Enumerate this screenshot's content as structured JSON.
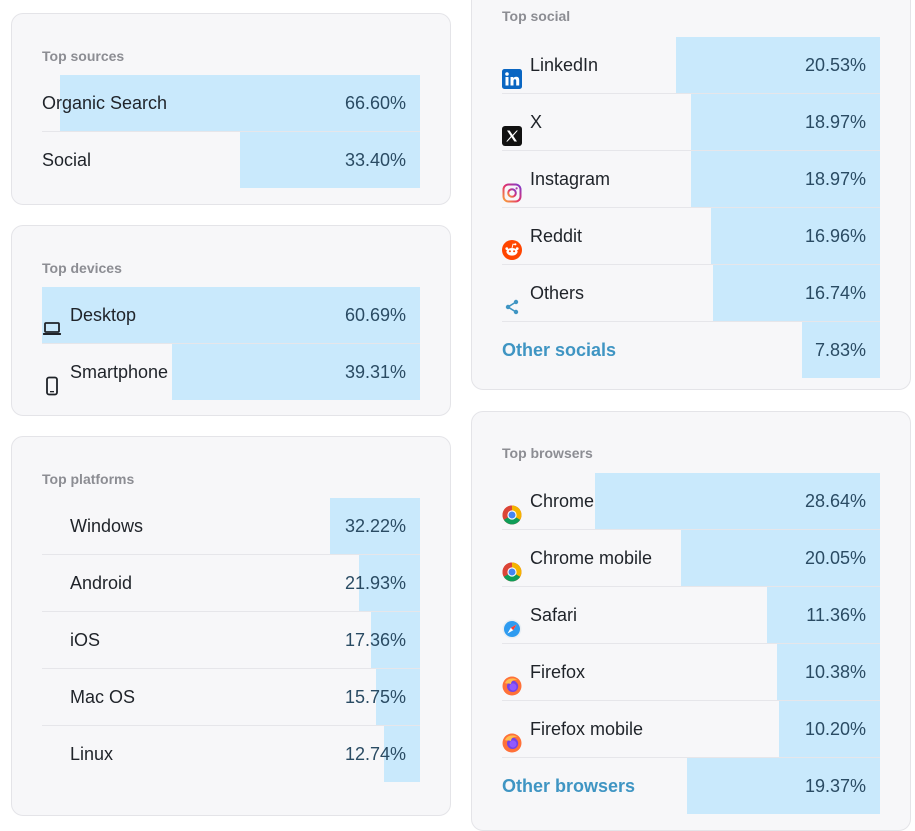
{
  "top_sources": {
    "title": "Top sources",
    "rows": [
      {
        "label": "Organic Search",
        "value": "66.60%",
        "pct": 66.6
      },
      {
        "label": "Social",
        "value": "33.40%",
        "pct": 33.4
      }
    ]
  },
  "top_devices": {
    "title": "Top devices",
    "rows": [
      {
        "label": "Desktop",
        "value": "60.69%",
        "pct": 60.69,
        "icon": "laptop-icon"
      },
      {
        "label": "Smartphone",
        "value": "39.31%",
        "pct": 39.31,
        "icon": "smartphone-icon"
      }
    ]
  },
  "top_platforms": {
    "title": "Top platforms",
    "rows": [
      {
        "label": "Windows",
        "value": "32.22%",
        "pct": 32.22
      },
      {
        "label": "Android",
        "value": "21.93%",
        "pct": 21.93
      },
      {
        "label": "iOS",
        "value": "17.36%",
        "pct": 17.36
      },
      {
        "label": "Mac OS",
        "value": "15.75%",
        "pct": 15.75
      },
      {
        "label": "Linux",
        "value": "12.74%",
        "pct": 12.74
      }
    ]
  },
  "top_social": {
    "title": "Top social",
    "rows": [
      {
        "label": "LinkedIn",
        "value": "20.53%",
        "pct": 20.53,
        "icon": "linkedin-icon"
      },
      {
        "label": "X",
        "value": "18.97%",
        "pct": 18.97,
        "icon": "x-icon"
      },
      {
        "label": "Instagram",
        "value": "18.97%",
        "pct": 18.97,
        "icon": "instagram-icon"
      },
      {
        "label": "Reddit",
        "value": "16.96%",
        "pct": 16.96,
        "icon": "reddit-icon"
      },
      {
        "label": "Others",
        "value": "16.74%",
        "pct": 16.74,
        "icon": "share-icon"
      }
    ],
    "other": {
      "label": "Other socials",
      "value": "7.83%",
      "pct": 7.83
    }
  },
  "top_browsers": {
    "title": "Top browsers",
    "rows": [
      {
        "label": "Chrome",
        "value": "28.64%",
        "pct": 28.64,
        "icon": "chrome-icon"
      },
      {
        "label": "Chrome mobile",
        "value": "20.05%",
        "pct": 20.05,
        "icon": "chrome-icon"
      },
      {
        "label": "Safari",
        "value": "11.36%",
        "pct": 11.36,
        "icon": "safari-icon"
      },
      {
        "label": "Firefox",
        "value": "10.38%",
        "pct": 10.38,
        "icon": "firefox-icon"
      },
      {
        "label": "Firefox mobile",
        "value": "10.20%",
        "pct": 10.2,
        "icon": "firefox-icon"
      }
    ],
    "other": {
      "label": "Other browsers",
      "value": "19.37%",
      "pct": 19.37
    }
  },
  "colors": {
    "bar": "#c9e9fc",
    "link": "#3f95c3",
    "card_bg": "#f7f7f9"
  }
}
